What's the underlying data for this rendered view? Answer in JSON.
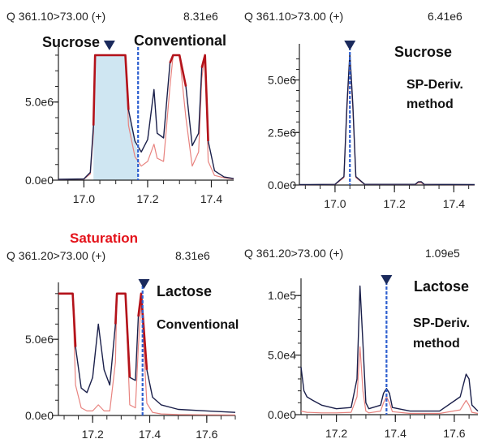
{
  "panels": [
    {
      "id": "p1",
      "header_left": "Q 361.10>73.00 (+)",
      "header_right": "8.31e6",
      "labels": [
        "Sucrose",
        "Conventional"
      ],
      "saturation_label": ""
    },
    {
      "id": "p2",
      "header_left": "Q 361.10>73.00 (+)",
      "header_right": "6.41e6",
      "labels": [
        "Sucrose"
      ],
      "method_lines": [
        "SP-Deriv.",
        "method"
      ]
    },
    {
      "id": "p3",
      "header_left": "Q 361.20>73.00 (+)",
      "header_right": "8.31e6",
      "labels": [
        "Lactose",
        "Conventional"
      ],
      "saturation_label": "Saturation"
    },
    {
      "id": "p4",
      "header_left": "Q 361.20>73.00 (+)",
      "header_right": "1.09e5",
      "labels": [
        "Lactose"
      ],
      "method_lines": [
        "SP-Deriv.",
        "method"
      ]
    }
  ],
  "colors": {
    "trace_dark": "#1a1f4a",
    "trace_light": "#e8837f",
    "trace_saturated": "#b3121a",
    "marker_line": "#2e5fcf",
    "marker_triangle": "#1a2a5c",
    "shade": "#cfe6f2"
  },
  "chart_data": [
    {
      "type": "line",
      "panel": "p1",
      "xlim": [
        16.92,
        17.47
      ],
      "ylim": [
        0,
        8310000
      ],
      "xticks": [
        "17.0",
        "17.2",
        "17.4"
      ],
      "xtick_values": [
        17.0,
        17.2,
        17.4
      ],
      "yticks": [
        "0.0e0",
        "5.0e6"
      ],
      "ytick_values": [
        0,
        5000000
      ],
      "saturation_level": 8000000,
      "marker_x": 17.17,
      "triangle_x": 17.08,
      "shaded_range": [
        17.03,
        17.17
      ],
      "series": [
        {
          "role": "dark",
          "x": [
            16.92,
            17.0,
            17.02,
            17.03,
            17.035,
            17.13,
            17.14,
            17.16,
            17.18,
            17.2,
            17.22,
            17.23,
            17.25,
            17.27,
            17.28,
            17.3,
            17.32,
            17.34,
            17.36,
            17.37,
            17.38,
            17.39,
            17.41,
            17.44,
            17.47
          ],
          "y": [
            50000,
            80000,
            500000,
            3500000,
            8000000,
            8000000,
            4500000,
            2500000,
            1800000,
            2600000,
            5800000,
            3000000,
            2700000,
            7500000,
            8000000,
            8000000,
            6000000,
            2200000,
            3000000,
            7200000,
            8000000,
            2500000,
            600000,
            200000,
            100000
          ]
        },
        {
          "role": "light",
          "x": [
            16.92,
            17.0,
            17.02,
            17.03,
            17.035,
            17.13,
            17.14,
            17.16,
            17.18,
            17.2,
            17.22,
            17.23,
            17.25,
            17.27,
            17.28,
            17.3,
            17.32,
            17.34,
            17.36,
            17.37,
            17.38,
            17.39,
            17.41,
            17.44,
            17.47
          ],
          "y": [
            40000,
            60000,
            400000,
            3000000,
            8000000,
            8000000,
            3500000,
            1500000,
            900000,
            1200000,
            2300000,
            1400000,
            1200000,
            6000000,
            8000000,
            8000000,
            4000000,
            900000,
            1800000,
            6500000,
            8000000,
            1200000,
            300000,
            150000,
            80000
          ]
        }
      ]
    },
    {
      "type": "line",
      "panel": "p2",
      "xlim": [
        16.88,
        17.47
      ],
      "ylim": [
        0,
        6410000
      ],
      "xticks": [
        "17.0",
        "17.2",
        "17.4"
      ],
      "xtick_values": [
        17.0,
        17.2,
        17.4
      ],
      "yticks": [
        "0.0e0",
        "2.5e6",
        "5.0e6"
      ],
      "ytick_values": [
        0,
        2500000,
        5000000
      ],
      "marker_x": 17.05,
      "triangle_x": 17.05,
      "series": [
        {
          "role": "dark",
          "x": [
            16.88,
            17.0,
            17.03,
            17.04,
            17.05,
            17.06,
            17.07,
            17.1,
            17.27,
            17.28,
            17.29,
            17.3,
            17.47
          ],
          "y": [
            20000,
            30000,
            400000,
            3800000,
            6300000,
            3800000,
            400000,
            30000,
            30000,
            150000,
            160000,
            30000,
            20000
          ]
        },
        {
          "role": "light",
          "x": [
            16.88,
            17.0,
            17.03,
            17.04,
            17.05,
            17.06,
            17.07,
            17.1,
            17.27,
            17.28,
            17.29,
            17.3,
            17.47
          ],
          "y": [
            15000,
            25000,
            350000,
            3600000,
            6100000,
            3600000,
            350000,
            25000,
            25000,
            100000,
            110000,
            25000,
            15000
          ]
        }
      ]
    },
    {
      "type": "line",
      "panel": "p3",
      "xlim": [
        17.08,
        17.7
      ],
      "ylim": [
        0,
        8310000
      ],
      "xticks": [
        "17.2",
        "17.4",
        "17.6"
      ],
      "xtick_values": [
        17.2,
        17.4,
        17.6
      ],
      "yticks": [
        "0.0e0",
        "5.0e6"
      ],
      "ytick_values": [
        0,
        5000000
      ],
      "saturation_level": 8000000,
      "marker_x": 17.375,
      "triangle_x": 17.38,
      "series": [
        {
          "role": "dark",
          "x": [
            17.08,
            17.09,
            17.1,
            17.13,
            17.14,
            17.16,
            17.18,
            17.2,
            17.22,
            17.24,
            17.26,
            17.28,
            17.285,
            17.315,
            17.33,
            17.35,
            17.36,
            17.37,
            17.39,
            17.41,
            17.44,
            17.5,
            17.6,
            17.7
          ],
          "y": [
            8000000,
            8000000,
            8000000,
            8000000,
            4500000,
            1800000,
            1500000,
            2500000,
            6000000,
            3000000,
            2000000,
            6000000,
            8000000,
            8000000,
            2500000,
            2300000,
            6500000,
            8000000,
            3000000,
            1200000,
            700000,
            400000,
            300000,
            200000
          ]
        },
        {
          "role": "light",
          "x": [
            17.08,
            17.09,
            17.1,
            17.13,
            17.14,
            17.16,
            17.18,
            17.2,
            17.22,
            17.24,
            17.26,
            17.28,
            17.285,
            17.315,
            17.33,
            17.35,
            17.36,
            17.37,
            17.39,
            17.41,
            17.44,
            17.5,
            17.6,
            17.7
          ],
          "y": [
            8000000,
            8000000,
            8000000,
            8000000,
            2000000,
            500000,
            300000,
            300000,
            700000,
            300000,
            300000,
            3500000,
            8000000,
            8000000,
            700000,
            500000,
            4500000,
            7500000,
            800000,
            200000,
            100000,
            60000,
            40000,
            30000
          ]
        }
      ]
    },
    {
      "type": "line",
      "panel": "p4",
      "xlim": [
        17.08,
        17.68
      ],
      "ylim": [
        0,
        109000
      ],
      "xticks": [
        "17.2",
        "17.4",
        "17.6"
      ],
      "xtick_values": [
        17.2,
        17.4,
        17.6
      ],
      "yticks": [
        "0.0e0",
        "5.0e4",
        "1.0e5"
      ],
      "ytick_values": [
        0,
        50000,
        100000
      ],
      "marker_x": 17.37,
      "triangle_x": 17.37,
      "series": [
        {
          "role": "dark",
          "x": [
            17.08,
            17.09,
            17.1,
            17.12,
            17.15,
            17.2,
            17.25,
            17.27,
            17.28,
            17.29,
            17.3,
            17.31,
            17.35,
            17.36,
            17.37,
            17.38,
            17.39,
            17.45,
            17.55,
            17.62,
            17.64,
            17.65,
            17.66,
            17.68
          ],
          "y": [
            40000,
            20000,
            15000,
            12000,
            8000,
            5000,
            6000,
            30000,
            108000,
            60000,
            10000,
            5000,
            8000,
            18000,
            22000,
            18000,
            6000,
            3000,
            3000,
            15000,
            34000,
            30000,
            8000,
            3000
          ]
        },
        {
          "role": "light",
          "x": [
            17.08,
            17.1,
            17.15,
            17.2,
            17.25,
            17.27,
            17.28,
            17.29,
            17.3,
            17.31,
            17.35,
            17.36,
            17.37,
            17.38,
            17.39,
            17.45,
            17.55,
            17.62,
            17.64,
            17.65,
            17.66,
            17.68
          ],
          "y": [
            3000,
            2000,
            1500,
            1500,
            2000,
            15000,
            57000,
            20000,
            3000,
            1500,
            3000,
            10000,
            15000,
            10000,
            2500,
            1000,
            1000,
            4000,
            12000,
            8000,
            2000,
            1000
          ]
        }
      ]
    }
  ]
}
